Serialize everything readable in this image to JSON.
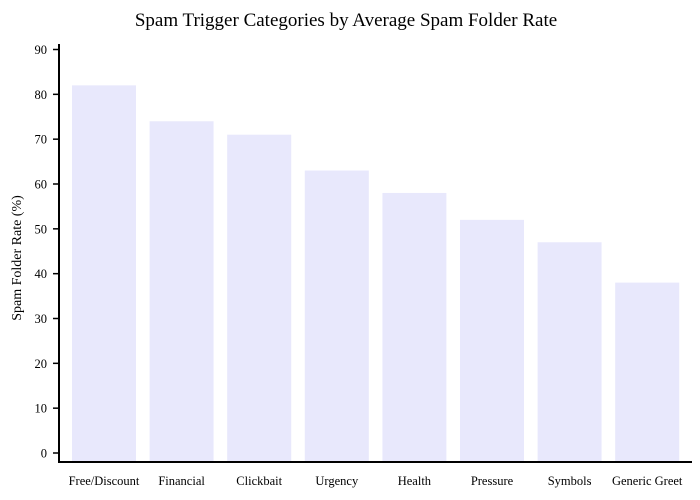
{
  "chart_data": {
    "type": "bar",
    "title": "Spam Trigger Categories by Average Spam Folder Rate",
    "xlabel": "",
    "ylabel": "Spam Folder Rate (%)",
    "categories": [
      "Free/Discount",
      "Financial",
      "Clickbait",
      "Urgency",
      "Health",
      "Pressure",
      "Symbols",
      "Generic Greet"
    ],
    "values": [
      82,
      74,
      71,
      63,
      58,
      52,
      47,
      38
    ],
    "ylim": [
      0,
      90
    ],
    "yticks": [
      0,
      10,
      20,
      30,
      40,
      50,
      60,
      70,
      80,
      90
    ],
    "bar_color": "#e8e8fc",
    "grid": false,
    "legend": "none"
  }
}
